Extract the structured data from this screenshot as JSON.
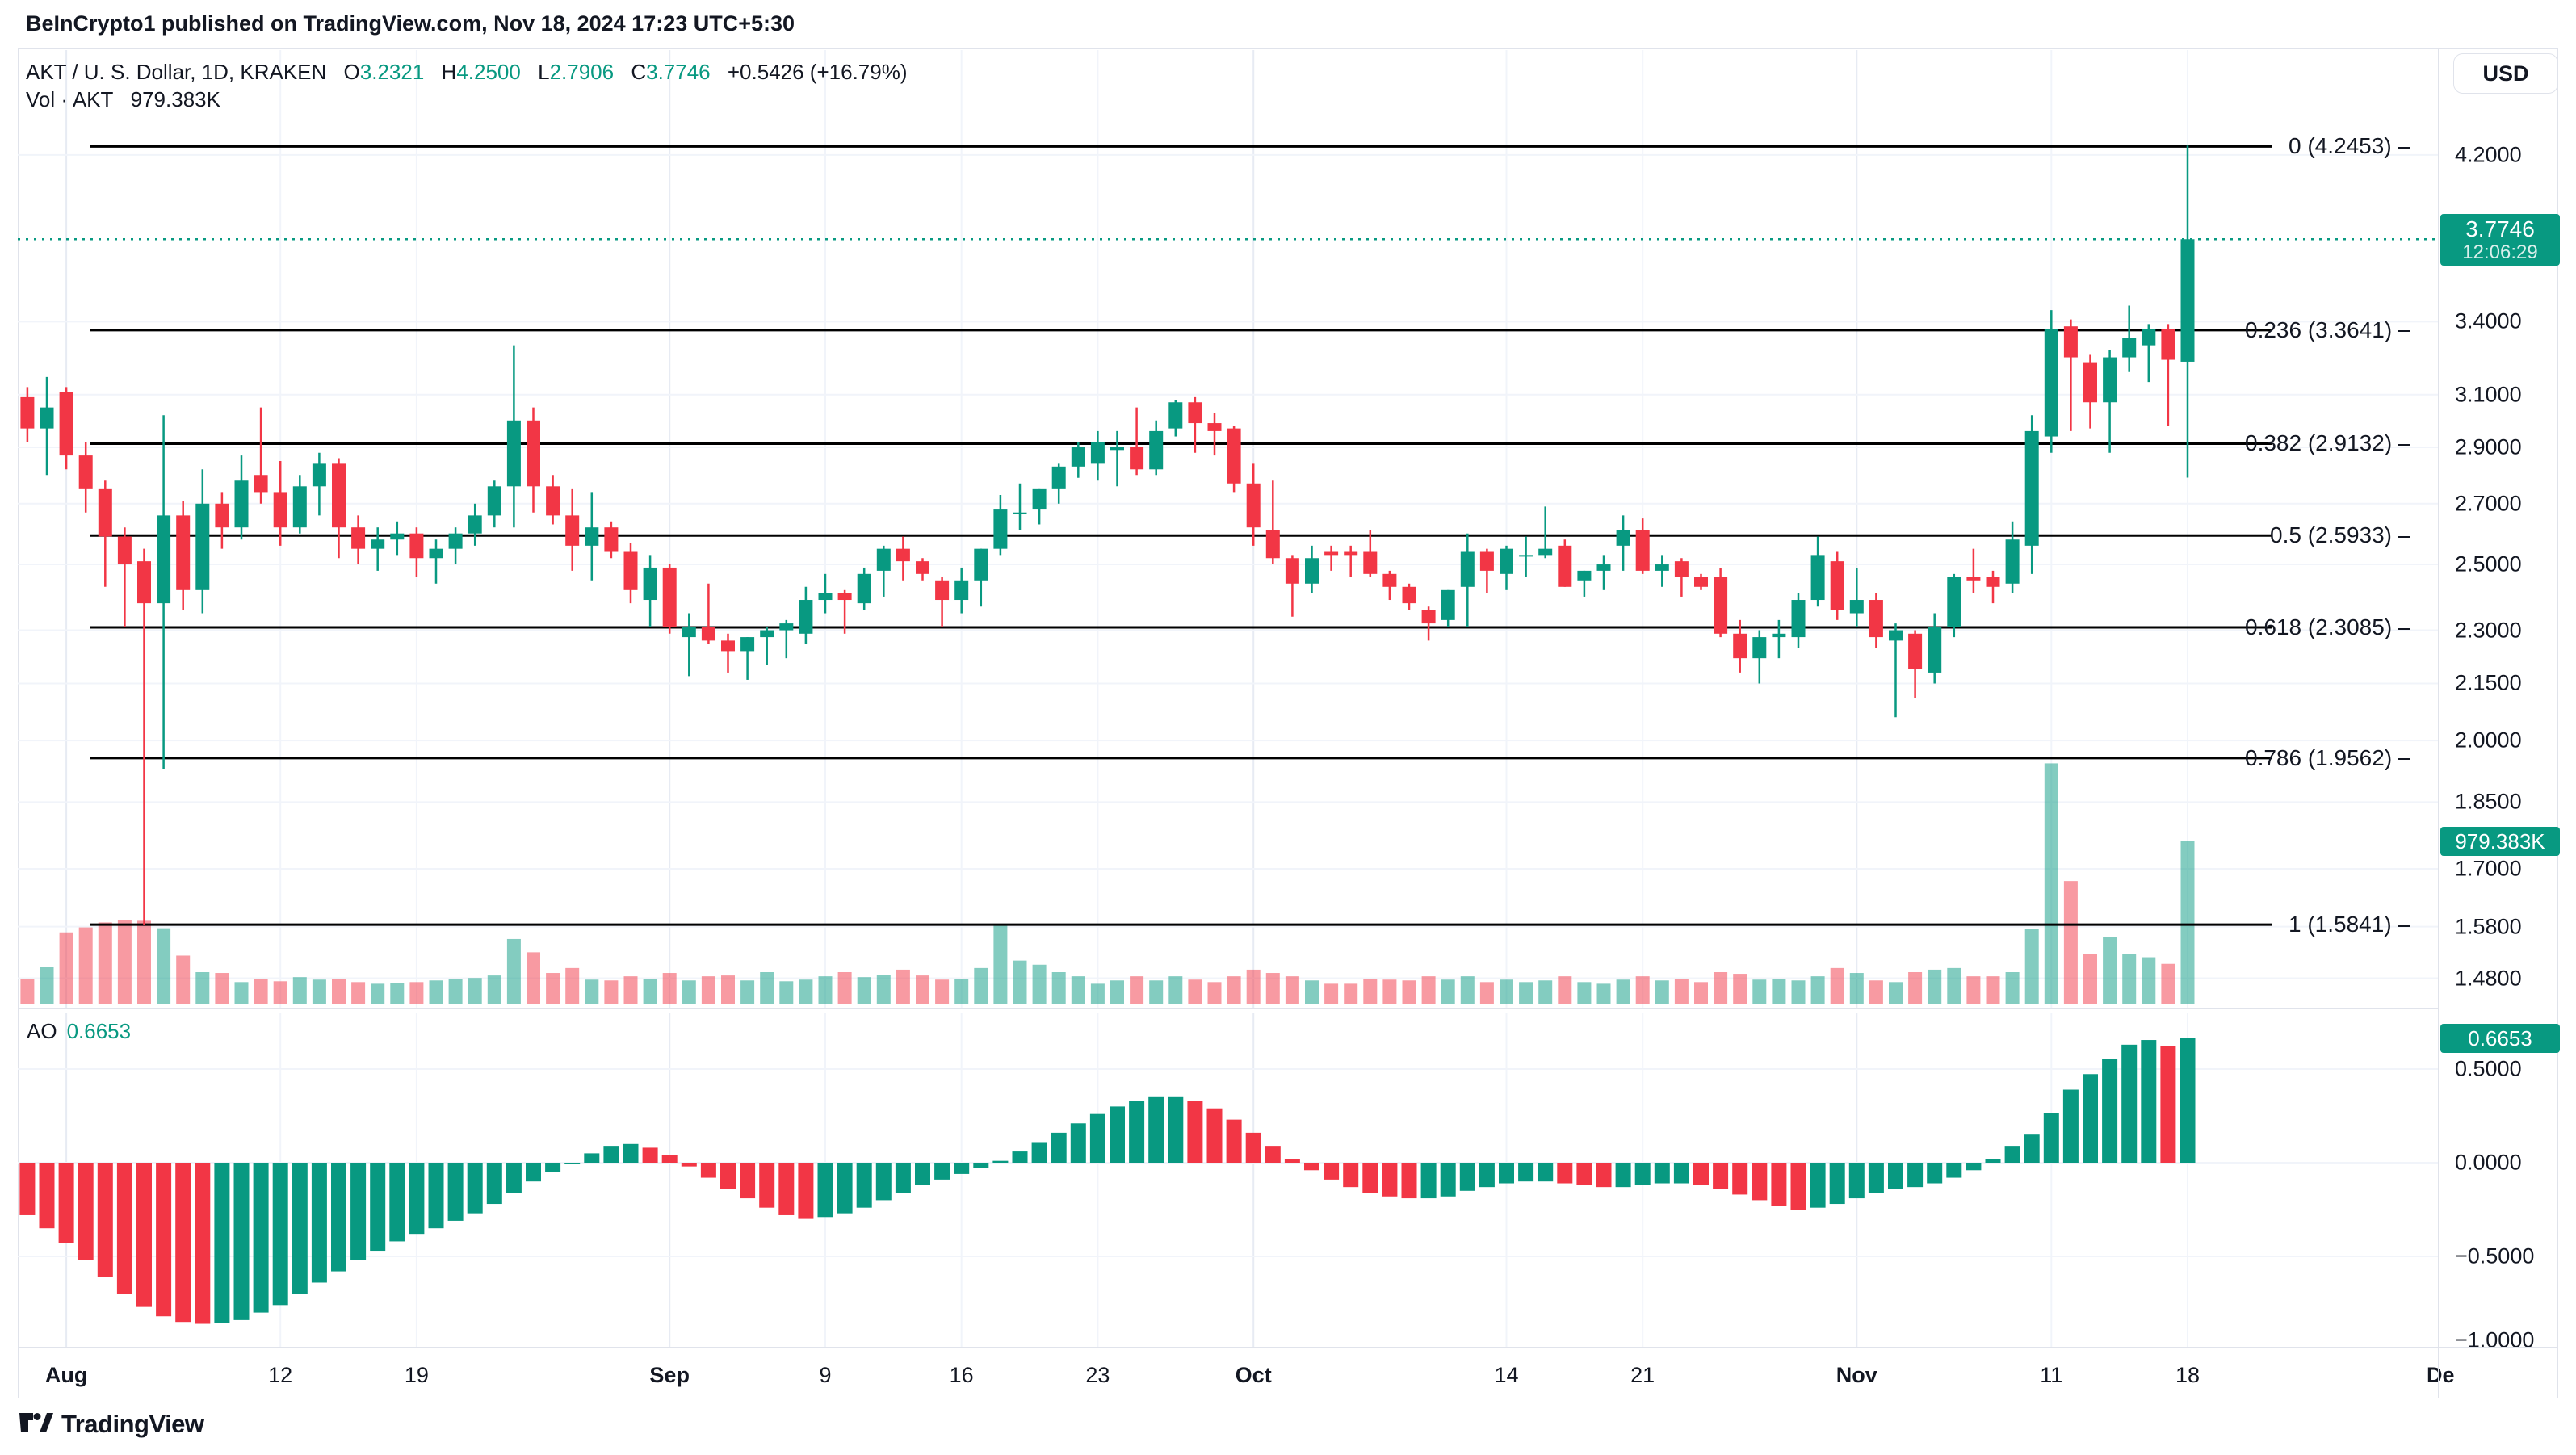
{
  "header": {
    "published_line": "BeInCrypto1 published on TradingView.com, Nov 18, 2024 17:23 UTC+5:30"
  },
  "legend": {
    "symbol_title": "AKT / U. S. Dollar, 1D, KRAKEN",
    "open_label": "O",
    "open": "3.2321",
    "high_label": "H",
    "high": "4.2500",
    "low_label": "L",
    "low": "2.7906",
    "close_label": "C",
    "close": "3.7746",
    "change": "+0.5426 (+16.79%)",
    "vol_label": "Vol · AKT",
    "vol_value": "979.383K"
  },
  "indicator": {
    "label": "AO",
    "value": "0.6653"
  },
  "price_axis": {
    "currency": "USD",
    "price_badge": {
      "price": "3.7746",
      "time": "12:06:29"
    },
    "volume_badge": "979.383K",
    "ao_badge": "0.6653"
  },
  "watermark": {
    "brand": "TradingView"
  },
  "colors": {
    "up": "#089981",
    "down": "#F23645",
    "vol_up": "rgba(8,153,129,0.5)",
    "vol_down": "rgba(242,54,69,0.5)",
    "accent_text": "#089981",
    "text": "#131722",
    "grid": "#f1f4fa",
    "grid_month": "#e7ebf3",
    "border": "#e0e3eb",
    "fib_line": "#000000"
  },
  "chart_data": {
    "type": "candlestick+volume+oscillator",
    "title": "AKT / U. S. Dollar, 1D, KRAKEN",
    "legend_position": "top-left",
    "price_scale_type": "log",
    "price_ticks": [
      {
        "label": "4.2000",
        "price": 4.2
      },
      {
        "label": "3.4000",
        "price": 3.4
      },
      {
        "label": "3.1000",
        "price": 3.1
      },
      {
        "label": "2.9000",
        "price": 2.9
      },
      {
        "label": "2.7000",
        "price": 2.7
      },
      {
        "label": "2.5000",
        "price": 2.5
      },
      {
        "label": "2.3000",
        "price": 2.3
      },
      {
        "label": "2.1500",
        "price": 2.15
      },
      {
        "label": "2.0000",
        "price": 2.0
      },
      {
        "label": "1.8500",
        "price": 1.85
      },
      {
        "label": "1.7000",
        "price": 1.7
      },
      {
        "label": "1.5800",
        "price": 1.58
      },
      {
        "label": "1.4800",
        "price": 1.48
      }
    ],
    "ao_ticks": [
      {
        "label": "0.5000",
        "value": 0.5
      },
      {
        "label": "0.0000",
        "value": 0.0
      },
      {
        "label": "−0.5000",
        "value": -0.5
      },
      {
        "label": "−1.0000",
        "value": -1.0
      }
    ],
    "time_ticks": [
      {
        "label": "Aug",
        "index": 3,
        "major": true
      },
      {
        "label": "12",
        "index": 14,
        "major": false
      },
      {
        "label": "19",
        "index": 21,
        "major": false
      },
      {
        "label": "Sep",
        "index": 34,
        "major": true
      },
      {
        "label": "9",
        "index": 42,
        "major": false
      },
      {
        "label": "16",
        "index": 49,
        "major": false
      },
      {
        "label": "23",
        "index": 56,
        "major": false
      },
      {
        "label": "Oct",
        "index": 64,
        "major": true
      },
      {
        "label": "14",
        "index": 77,
        "major": false
      },
      {
        "label": "21",
        "index": 84,
        "major": false
      },
      {
        "label": "Nov",
        "index": 95,
        "major": true
      },
      {
        "label": "11",
        "index": 105,
        "major": false
      },
      {
        "label": "18",
        "index": 112,
        "major": false
      },
      {
        "label": "De",
        "index": 125,
        "major": true
      }
    ],
    "fib_levels": [
      {
        "label": "0 (4.2453)",
        "price": 4.2453
      },
      {
        "label": "0.236 (3.3641)",
        "price": 3.3641
      },
      {
        "label": "0.382 (2.9132)",
        "price": 2.9132
      },
      {
        "label": "0.5 (2.5933)",
        "price": 2.5933
      },
      {
        "label": "0.618 (2.3085)",
        "price": 2.3085
      },
      {
        "label": "0.786 (1.9562)",
        "price": 1.9562
      },
      {
        "label": "1 (1.5841)",
        "price": 1.5841
      }
    ],
    "current_price_line": 3.7746,
    "last_bar_volume_k": 979.383,
    "last_ao_value": 0.6653,
    "start_date": "2024-07-29",
    "candles_ohlc": [
      [
        3.28,
        3.31,
        3.02,
        3.09
      ],
      [
        3.09,
        3.13,
        2.92,
        2.97
      ],
      [
        2.97,
        3.17,
        2.8,
        3.05
      ],
      [
        3.11,
        3.13,
        2.82,
        2.87
      ],
      [
        2.87,
        2.92,
        2.67,
        2.75
      ],
      [
        2.75,
        2.78,
        2.43,
        2.59
      ],
      [
        2.59,
        2.62,
        2.31,
        2.5
      ],
      [
        2.51,
        2.55,
        1.5841,
        2.38
      ],
      [
        2.38,
        3.02,
        1.93,
        2.66
      ],
      [
        2.66,
        2.71,
        2.36,
        2.42
      ],
      [
        2.42,
        2.82,
        2.35,
        2.7
      ],
      [
        2.7,
        2.74,
        2.55,
        2.62
      ],
      [
        2.62,
        2.87,
        2.58,
        2.78
      ],
      [
        2.8,
        3.05,
        2.7,
        2.74
      ],
      [
        2.74,
        2.85,
        2.56,
        2.62
      ],
      [
        2.62,
        2.8,
        2.6,
        2.76
      ],
      [
        2.76,
        2.88,
        2.66,
        2.84
      ],
      [
        2.84,
        2.86,
        2.52,
        2.62
      ],
      [
        2.62,
        2.66,
        2.5,
        2.55
      ],
      [
        2.55,
        2.62,
        2.48,
        2.58
      ],
      [
        2.58,
        2.64,
        2.53,
        2.6
      ],
      [
        2.6,
        2.62,
        2.46,
        2.52
      ],
      [
        2.52,
        2.58,
        2.44,
        2.55
      ],
      [
        2.55,
        2.62,
        2.5,
        2.6
      ],
      [
        2.6,
        2.7,
        2.56,
        2.66
      ],
      [
        2.66,
        2.78,
        2.62,
        2.76
      ],
      [
        2.76,
        3.3,
        2.62,
        3.0
      ],
      [
        3.0,
        3.05,
        2.67,
        2.76
      ],
      [
        2.76,
        2.8,
        2.63,
        2.66
      ],
      [
        2.66,
        2.75,
        2.48,
        2.56
      ],
      [
        2.56,
        2.74,
        2.45,
        2.62
      ],
      [
        2.62,
        2.64,
        2.52,
        2.54
      ],
      [
        2.54,
        2.57,
        2.38,
        2.42
      ],
      [
        2.39,
        2.53,
        2.31,
        2.49
      ],
      [
        2.49,
        2.5,
        2.29,
        2.31
      ],
      [
        2.28,
        2.35,
        2.17,
        2.31
      ],
      [
        2.31,
        2.44,
        2.26,
        2.27
      ],
      [
        2.27,
        2.29,
        2.18,
        2.24
      ],
      [
        2.24,
        2.28,
        2.16,
        2.28
      ],
      [
        2.28,
        2.31,
        2.2,
        2.3
      ],
      [
        2.3,
        2.33,
        2.22,
        2.32
      ],
      [
        2.29,
        2.43,
        2.26,
        2.39
      ],
      [
        2.39,
        2.47,
        2.35,
        2.41
      ],
      [
        2.41,
        2.42,
        2.29,
        2.39
      ],
      [
        2.38,
        2.49,
        2.36,
        2.47
      ],
      [
        2.48,
        2.56,
        2.4,
        2.55
      ],
      [
        2.55,
        2.59,
        2.45,
        2.51
      ],
      [
        2.51,
        2.52,
        2.45,
        2.47
      ],
      [
        2.45,
        2.46,
        2.31,
        2.39
      ],
      [
        2.39,
        2.49,
        2.35,
        2.45
      ],
      [
        2.45,
        2.55,
        2.37,
        2.55
      ],
      [
        2.55,
        2.73,
        2.53,
        2.68
      ],
      [
        2.67,
        2.77,
        2.61,
        2.67
      ],
      [
        2.68,
        2.75,
        2.63,
        2.75
      ],
      [
        2.75,
        2.84,
        2.7,
        2.83
      ],
      [
        2.83,
        2.92,
        2.79,
        2.9
      ],
      [
        2.84,
        2.96,
        2.78,
        2.92
      ],
      [
        2.89,
        2.96,
        2.76,
        2.9
      ],
      [
        2.9,
        3.05,
        2.8,
        2.82
      ],
      [
        2.82,
        3.0,
        2.8,
        2.96
      ],
      [
        2.97,
        3.08,
        2.94,
        3.07
      ],
      [
        3.07,
        3.09,
        2.88,
        2.99
      ],
      [
        2.99,
        3.03,
        2.87,
        2.96
      ],
      [
        2.97,
        2.98,
        2.74,
        2.77
      ],
      [
        2.77,
        2.84,
        2.56,
        2.62
      ],
      [
        2.61,
        2.78,
        2.5,
        2.52
      ],
      [
        2.52,
        2.53,
        2.34,
        2.44
      ],
      [
        2.44,
        2.56,
        2.41,
        2.52
      ],
      [
        2.54,
        2.56,
        2.48,
        2.53
      ],
      [
        2.54,
        2.56,
        2.46,
        2.53
      ],
      [
        2.54,
        2.61,
        2.46,
        2.47
      ],
      [
        2.47,
        2.48,
        2.39,
        2.43
      ],
      [
        2.43,
        2.44,
        2.36,
        2.38
      ],
      [
        2.36,
        2.37,
        2.27,
        2.32
      ],
      [
        2.33,
        2.42,
        2.31,
        2.42
      ],
      [
        2.43,
        2.6,
        2.31,
        2.54
      ],
      [
        2.54,
        2.55,
        2.41,
        2.48
      ],
      [
        2.47,
        2.56,
        2.42,
        2.55
      ],
      [
        2.53,
        2.59,
        2.46,
        2.53
      ],
      [
        2.53,
        2.69,
        2.52,
        2.55
      ],
      [
        2.56,
        2.58,
        2.43,
        2.43
      ],
      [
        2.45,
        2.48,
        2.4,
        2.48
      ],
      [
        2.48,
        2.53,
        2.42,
        2.5
      ],
      [
        2.56,
        2.66,
        2.48,
        2.61
      ],
      [
        2.61,
        2.65,
        2.47,
        2.48
      ],
      [
        2.48,
        2.53,
        2.43,
        2.5
      ],
      [
        2.51,
        2.52,
        2.4,
        2.46
      ],
      [
        2.46,
        2.47,
        2.42,
        2.43
      ],
      [
        2.46,
        2.49,
        2.28,
        2.29
      ],
      [
        2.29,
        2.33,
        2.18,
        2.22
      ],
      [
        2.22,
        2.3,
        2.15,
        2.28
      ],
      [
        2.28,
        2.33,
        2.22,
        2.29
      ],
      [
        2.28,
        2.41,
        2.25,
        2.39
      ],
      [
        2.39,
        2.59,
        2.37,
        2.53
      ],
      [
        2.51,
        2.54,
        2.33,
        2.36
      ],
      [
        2.35,
        2.49,
        2.31,
        2.39
      ],
      [
        2.39,
        2.41,
        2.25,
        2.28
      ],
      [
        2.27,
        2.32,
        2.06,
        2.3
      ],
      [
        2.29,
        2.3,
        2.11,
        2.19
      ],
      [
        2.18,
        2.35,
        2.15,
        2.31
      ],
      [
        2.31,
        2.47,
        2.28,
        2.46
      ],
      [
        2.46,
        2.55,
        2.41,
        2.45
      ],
      [
        2.46,
        2.48,
        2.38,
        2.43
      ],
      [
        2.44,
        2.64,
        2.41,
        2.58
      ],
      [
        2.56,
        3.02,
        2.47,
        2.96
      ],
      [
        2.94,
        3.45,
        2.88,
        3.37
      ],
      [
        3.38,
        3.41,
        2.96,
        3.25
      ],
      [
        3.23,
        3.26,
        2.97,
        3.07
      ],
      [
        3.07,
        3.28,
        2.88,
        3.25
      ],
      [
        3.25,
        3.47,
        3.19,
        3.33
      ],
      [
        3.3,
        3.39,
        3.15,
        3.37
      ],
      [
        3.37,
        3.39,
        2.98,
        3.24
      ],
      [
        3.2321,
        4.25,
        2.7906,
        3.7746
      ]
    ],
    "volumes_k": [
      120,
      150,
      220,
      430,
      460,
      490,
      505,
      500,
      455,
      290,
      190,
      185,
      130,
      150,
      135,
      160,
      145,
      150,
      130,
      120,
      125,
      130,
      140,
      150,
      155,
      170,
      390,
      310,
      185,
      215,
      145,
      140,
      165,
      150,
      185,
      140,
      165,
      170,
      140,
      190,
      135,
      145,
      165,
      190,
      160,
      175,
      205,
      170,
      145,
      150,
      215,
      470,
      260,
      235,
      190,
      165,
      120,
      140,
      165,
      140,
      165,
      145,
      130,
      165,
      205,
      185,
      165,
      140,
      120,
      120,
      150,
      145,
      140,
      165,
      145,
      165,
      130,
      145,
      130,
      140,
      165,
      130,
      120,
      145,
      165,
      140,
      150,
      130,
      190,
      180,
      145,
      150,
      140,
      165,
      215,
      185,
      140,
      130,
      190,
      205,
      215,
      165,
      165,
      190,
      450,
      1450,
      740,
      300,
      400,
      300,
      280,
      240,
      979.383
    ],
    "ao": [
      -0.22,
      -0.28,
      -0.35,
      -0.43,
      -0.52,
      -0.61,
      -0.7,
      -0.77,
      -0.82,
      -0.85,
      -0.86,
      -0.855,
      -0.84,
      -0.8,
      -0.76,
      -0.7,
      -0.64,
      -0.58,
      -0.52,
      -0.47,
      -0.42,
      -0.38,
      -0.35,
      -0.31,
      -0.27,
      -0.22,
      -0.16,
      -0.1,
      -0.05,
      0.0,
      0.05,
      0.09,
      0.1,
      0.08,
      0.04,
      -0.02,
      -0.08,
      -0.14,
      -0.19,
      -0.24,
      -0.28,
      -0.3,
      -0.29,
      -0.27,
      -0.24,
      -0.2,
      -0.16,
      -0.12,
      -0.09,
      -0.06,
      -0.03,
      0.01,
      0.06,
      0.11,
      0.16,
      0.21,
      0.26,
      0.3,
      0.33,
      0.35,
      0.35,
      0.33,
      0.29,
      0.23,
      0.16,
      0.09,
      0.02,
      -0.04,
      -0.09,
      -0.13,
      -0.16,
      -0.18,
      -0.19,
      -0.19,
      -0.18,
      -0.15,
      -0.13,
      -0.11,
      -0.1,
      -0.1,
      -0.11,
      -0.12,
      -0.13,
      -0.13,
      -0.12,
      -0.11,
      -0.11,
      -0.12,
      -0.14,
      -0.17,
      -0.2,
      -0.23,
      -0.25,
      -0.24,
      -0.22,
      -0.19,
      -0.16,
      -0.14,
      -0.13,
      -0.11,
      -0.08,
      -0.04,
      0.02,
      0.09,
      0.15,
      0.265,
      0.39,
      0.473,
      0.555,
      0.63,
      0.655,
      0.625,
      0.6653
    ]
  }
}
